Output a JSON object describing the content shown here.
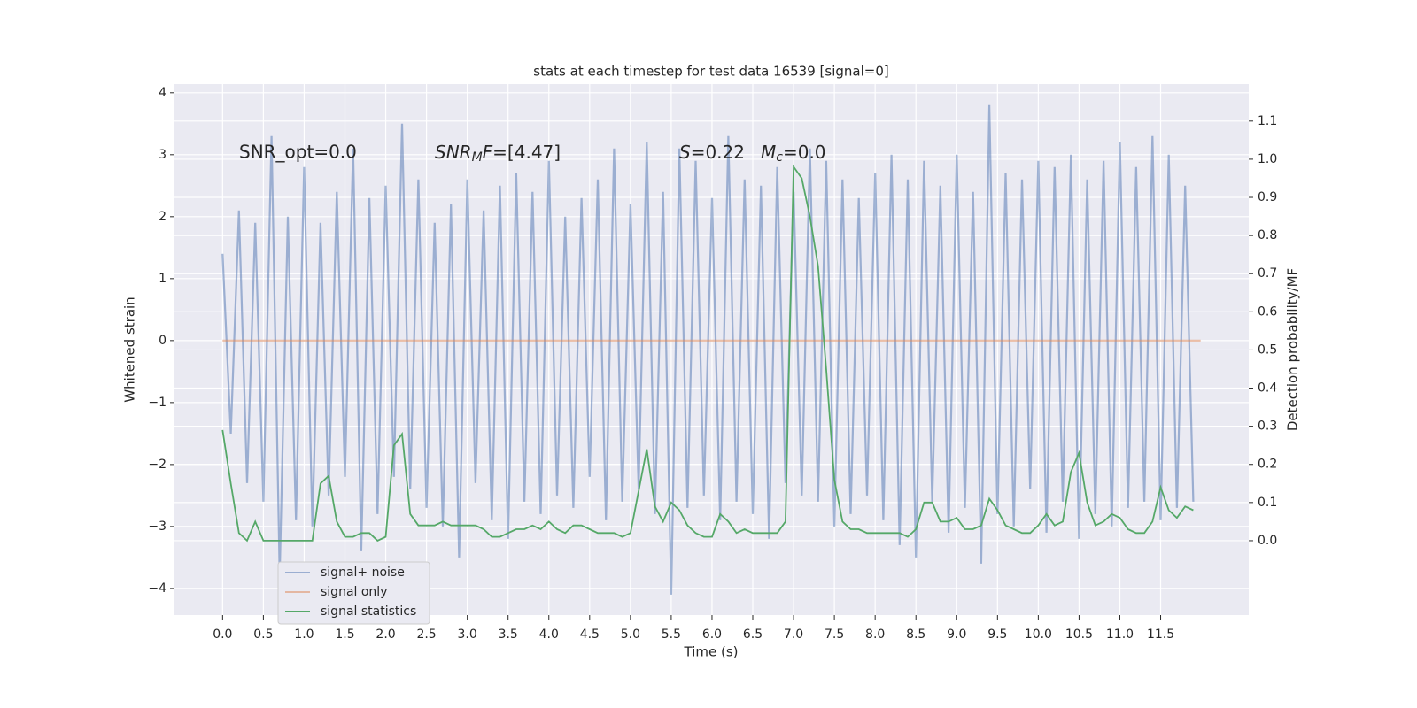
{
  "chart_data": {
    "type": "line",
    "title": "stats at each timestep for test data 16539 [signal=0]",
    "x_label": "Time (s)",
    "y_label": "Whitened strain",
    "y2_label": "Detection probability/MF",
    "annotations": [
      {
        "text": "SNR_opt=0.0",
        "math": false
      },
      {
        "text": "SNR_MF=[4.47]",
        "math": true
      },
      {
        "text": "S=0.22",
        "math": true
      },
      {
        "text": "M_c=0.0",
        "math": true
      }
    ],
    "x": [
      0,
      0.1,
      0.2,
      0.3,
      0.4,
      0.5,
      0.6,
      0.7,
      0.8,
      0.9,
      1,
      1.1,
      1.2,
      1.3,
      1.4,
      1.5,
      1.6,
      1.7,
      1.8,
      1.9,
      2,
      2.1,
      2.2,
      2.3,
      2.4,
      2.5,
      2.6,
      2.7,
      2.8,
      2.9,
      3,
      3.1,
      3.2,
      3.3,
      3.4,
      3.5,
      3.6,
      3.7,
      3.8,
      3.9,
      4,
      4.1,
      4.2,
      4.3,
      4.4,
      4.5,
      4.6,
      4.7,
      4.8,
      4.9,
      5,
      5.1,
      5.2,
      5.3,
      5.4,
      5.5,
      5.6,
      5.7,
      5.8,
      5.9,
      6,
      6.1,
      6.2,
      6.3,
      6.4,
      6.5,
      6.6,
      6.7,
      6.8,
      6.9,
      7,
      7.1,
      7.2,
      7.3,
      7.4,
      7.5,
      7.6,
      7.7,
      7.8,
      7.9,
      8,
      8.1,
      8.2,
      8.3,
      8.4,
      8.5,
      8.6,
      8.7,
      8.8,
      8.9,
      9,
      9.1,
      9.2,
      9.3,
      9.4,
      9.5,
      9.6,
      9.7,
      9.8,
      9.9,
      10,
      10.1,
      10.2,
      10.3,
      10.4,
      10.5,
      10.6,
      10.7,
      10.8,
      10.9,
      11,
      11.1,
      11.2,
      11.3,
      11.4,
      11.5,
      11.6,
      11.7,
      11.8,
      11.9
    ],
    "series": [
      {
        "name": "signal+ noise",
        "color": "#4c72b0",
        "values": [
          1.4,
          -1.5,
          2.1,
          -2.3,
          1.9,
          -2.6,
          3.3,
          -3.8,
          2.0,
          -2.9,
          2.8,
          -3.0,
          1.9,
          -2.5,
          2.4,
          -2.2,
          3.1,
          -3.4,
          2.3,
          -2.8,
          2.5,
          -2.2,
          3.5,
          -2.4,
          2.6,
          -2.7,
          1.9,
          -3.0,
          2.2,
          -3.5,
          2.6,
          -2.3,
          2.1,
          -2.9,
          2.5,
          -3.2,
          2.7,
          -2.6,
          2.4,
          -2.8,
          2.9,
          -2.5,
          2.0,
          -2.7,
          2.3,
          -2.2,
          2.6,
          -2.9,
          3.1,
          -2.6,
          2.2,
          -2.4,
          3.2,
          -2.8,
          2.4,
          -4.1,
          3.1,
          -2.7,
          2.9,
          -2.5,
          2.3,
          -2.9,
          3.3,
          -2.6,
          2.6,
          -2.8,
          2.5,
          -3.2,
          2.8,
          -2.3,
          2.4,
          -2.5,
          3.1,
          -2.6,
          2.9,
          -3.0,
          2.6,
          -2.8,
          2.3,
          -2.5,
          2.7,
          -2.9,
          3.0,
          -3.3,
          2.6,
          -3.5,
          2.9,
          -2.6,
          2.5,
          -3.1,
          3.0,
          -2.7,
          2.4,
          -3.6,
          3.8,
          -2.8,
          2.7,
          -3.0,
          2.6,
          -2.4,
          2.9,
          -3.1,
          2.8,
          -2.6,
          3.0,
          -3.2,
          2.6,
          -2.8,
          2.9,
          -3.0,
          3.2,
          -2.7,
          2.8,
          -2.6,
          3.3,
          -2.9,
          3.0,
          -2.7,
          2.5,
          -2.6
        ]
      },
      {
        "name": "signal only",
        "color": "#dd8452",
        "x": [
          0,
          11.99
        ],
        "values": [
          0,
          0
        ]
      },
      {
        "name": "signal statistics",
        "color": "#55a868",
        "axis": "y2",
        "values": [
          0.29,
          0.15,
          0.02,
          0.0,
          0.05,
          0.0,
          0.0,
          0.0,
          0.0,
          0.0,
          0.0,
          0.0,
          0.15,
          0.17,
          0.05,
          0.01,
          0.01,
          0.02,
          0.02,
          0.0,
          0.01,
          0.25,
          0.28,
          0.07,
          0.04,
          0.04,
          0.04,
          0.05,
          0.04,
          0.04,
          0.04,
          0.04,
          0.03,
          0.01,
          0.01,
          0.02,
          0.03,
          0.03,
          0.04,
          0.03,
          0.05,
          0.03,
          0.02,
          0.04,
          0.04,
          0.03,
          0.02,
          0.02,
          0.02,
          0.01,
          0.02,
          0.13,
          0.24,
          0.09,
          0.05,
          0.1,
          0.08,
          0.04,
          0.02,
          0.01,
          0.01,
          0.07,
          0.05,
          0.02,
          0.03,
          0.02,
          0.02,
          0.02,
          0.02,
          0.05,
          0.98,
          0.95,
          0.85,
          0.72,
          0.45,
          0.16,
          0.05,
          0.03,
          0.03,
          0.02,
          0.02,
          0.02,
          0.02,
          0.02,
          0.01,
          0.03,
          0.1,
          0.1,
          0.05,
          0.05,
          0.06,
          0.03,
          0.03,
          0.04,
          0.11,
          0.08,
          0.04,
          0.03,
          0.02,
          0.02,
          0.04,
          0.07,
          0.04,
          0.05,
          0.18,
          0.23,
          0.1,
          0.04,
          0.05,
          0.07,
          0.06,
          0.03,
          0.02,
          0.02,
          0.05,
          0.14,
          0.08,
          0.06,
          0.09,
          0.08
        ]
      }
    ],
    "xlim": [
      -0.59,
      12.58
    ],
    "ylim": [
      -4.43,
      4.14
    ],
    "y2lim": [
      -0.195,
      1.197
    ],
    "xticks": [
      {
        "value": 0,
        "label": "0.0"
      },
      0.5,
      {
        "value": 1,
        "label": "1.0"
      },
      1.5,
      {
        "value": 2,
        "label": "2.0"
      },
      2.5,
      {
        "value": 3,
        "label": "3.0"
      },
      3.5,
      {
        "value": 4,
        "label": "4.0"
      },
      4.5,
      {
        "value": 5,
        "label": "5.0"
      },
      5.5,
      {
        "value": 6,
        "label": "6.0"
      },
      6.5,
      {
        "value": 7,
        "label": "7.0"
      },
      7.5,
      {
        "value": 8,
        "label": "8.0"
      },
      8.5,
      {
        "value": 9,
        "label": "9.0"
      },
      9.5,
      {
        "value": 10,
        "label": "10.0"
      },
      10.5,
      {
        "value": 11,
        "label": "11.0"
      },
      11.5
    ],
    "yticks": [
      {
        "value": -4,
        "label": "−4"
      },
      {
        "value": -3,
        "label": "−3"
      },
      {
        "value": -2,
        "label": "−2"
      },
      {
        "value": -1,
        "label": "−1"
      },
      0,
      1,
      2,
      3,
      4
    ],
    "y2ticks": [
      {
        "value": 0,
        "label": "0.0"
      },
      0.1,
      0.2,
      0.3,
      0.4,
      0.5,
      0.6,
      0.7,
      0.8,
      0.9,
      {
        "value": 1,
        "label": "1.0"
      },
      1.1
    ],
    "grid": true,
    "legend": "lower left"
  }
}
